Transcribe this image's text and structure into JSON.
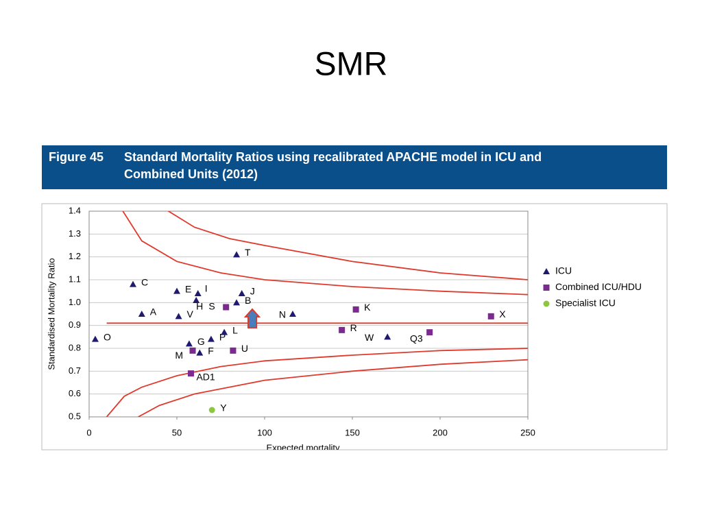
{
  "slide_title": "SMR",
  "figure_label": "Figure 45",
  "figure_caption": [
    "Standard Mortality Ratios using recalibrated APACHE model in ICU and",
    "Combined Units (2012)"
  ],
  "chart_data": {
    "type": "scatter",
    "xlabel": "Expected mortality",
    "ylabel": "Standardised Mortality Ratio",
    "xlim": [
      0,
      250
    ],
    "ylim": [
      0.5,
      1.4
    ],
    "xticks": [
      0,
      50,
      100,
      150,
      200,
      250
    ],
    "yticks": [
      0.5,
      0.6,
      0.7,
      0.8,
      0.9,
      {
        "value": 1,
        "label": "1.0"
      },
      1.1,
      1.2,
      1.3,
      1.4
    ],
    "grid": true,
    "legend": "right",
    "series": [
      {
        "name": "ICU",
        "color": "#1f1a6e",
        "marker": "triangle",
        "labels": [
          "O",
          "C",
          "A",
          "E",
          "I",
          "H",
          "V",
          "G",
          "F",
          "P",
          "L",
          "T",
          "J",
          "B",
          "N",
          "W"
        ],
        "x": [
          3.5,
          25,
          30,
          50,
          62,
          61,
          51,
          57,
          63,
          69.5,
          77,
          84,
          87,
          84,
          116,
          170
        ],
        "values": [
          0.84,
          1.08,
          0.95,
          1.05,
          1.04,
          1.01,
          0.94,
          0.82,
          0.78,
          0.84,
          0.87,
          1.21,
          1.04,
          1.0,
          0.95,
          0.85
        ]
      },
      {
        "name": "Combined ICU/HDU",
        "color": "#7b2a8e",
        "marker": "square",
        "labels": [
          "S",
          "K",
          "X",
          "R",
          "Q3",
          "M",
          "U",
          "AD1"
        ],
        "x": [
          78,
          152,
          229,
          144,
          194,
          59,
          82,
          58
        ],
        "values": [
          0.98,
          0.97,
          0.94,
          0.88,
          0.87,
          0.79,
          0.79,
          0.69
        ]
      },
      {
        "name": "Specialist ICU",
        "color": "#8dc63f",
        "marker": "circle",
        "labels": [
          "Y"
        ],
        "x": [
          70
        ],
        "values": [
          0.53
        ]
      }
    ],
    "reference_line": {
      "value": 0.91,
      "x": [
        10,
        250
      ],
      "color": "#e0392b"
    },
    "limit_curves": {
      "color": "#e0392b",
      "lines": [
        {
          "x": [
            17.6,
            30,
            50,
            75,
            100,
            150,
            200,
            250
          ],
          "values": [
            1.42,
            1.27,
            1.18,
            1.13,
            1.1,
            1.07,
            1.05,
            1.035
          ]
        },
        {
          "x": [
            41,
            60,
            80,
            100,
            150,
            200,
            250
          ],
          "values": [
            1.42,
            1.33,
            1.28,
            1.25,
            1.18,
            1.13,
            1.1
          ]
        },
        {
          "x": [
            10,
            20,
            30,
            50,
            75,
            100,
            150,
            200,
            250
          ],
          "values": [
            0.5,
            0.59,
            0.63,
            0.68,
            0.72,
            0.745,
            0.77,
            0.79,
            0.8
          ]
        },
        {
          "x": [
            28,
            40,
            60,
            80,
            100,
            150,
            200,
            250
          ],
          "values": [
            0.5,
            0.55,
            0.6,
            0.63,
            0.66,
            0.7,
            0.73,
            0.75
          ]
        }
      ]
    }
  }
}
